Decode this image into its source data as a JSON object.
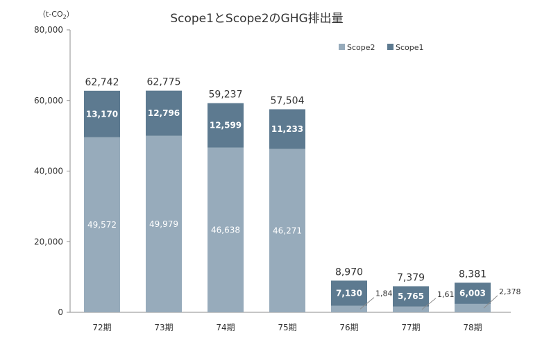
{
  "chart_data": {
    "type": "bar",
    "stacked": true,
    "title": "Scope1とScope2のGHG排出量",
    "unit_label": "（t-CO",
    "unit_sub": "2",
    "unit_close": "）",
    "categories": [
      "72期",
      "73期",
      "74期",
      "75期",
      "76期",
      "77期",
      "78期"
    ],
    "series": [
      {
        "name": "Scope2",
        "values": [
          49572,
          49979,
          46638,
          46271,
          1840,
          1614,
          2378
        ],
        "labels": [
          "49,572",
          "49,979",
          "46,638",
          "46,271",
          "1,840",
          "1,614",
          "2,378"
        ],
        "color": "#97abbb"
      },
      {
        "name": "Scope1",
        "values": [
          13170,
          12796,
          12599,
          11233,
          7130,
          5765,
          6003
        ],
        "labels": [
          "13,170",
          "12,796",
          "12,599",
          "11,233",
          "7,130",
          "5,765",
          "6,003"
        ],
        "color": "#5d7a90"
      }
    ],
    "totals": [
      62742,
      62775,
      59237,
      57504,
      8970,
      7379,
      8381
    ],
    "total_labels": [
      "62,742",
      "62,775",
      "59,237",
      "57,504",
      "8,970",
      "7,379",
      "8,381"
    ],
    "ylim": [
      0,
      80000
    ],
    "yticks": [
      0,
      20000,
      40000,
      60000,
      80000
    ],
    "ytick_labels": [
      "0",
      "20,000",
      "40,000",
      "60,000",
      "80,000"
    ],
    "legend_position": "top-right",
    "grid": false
  }
}
